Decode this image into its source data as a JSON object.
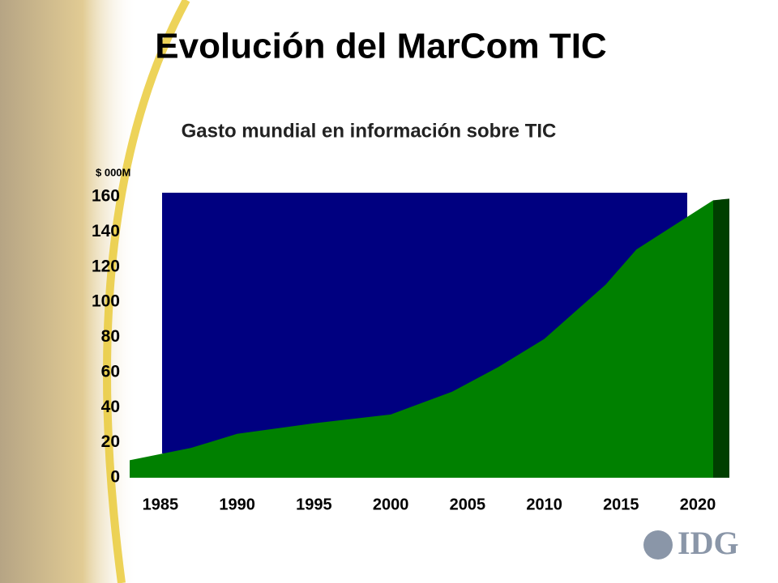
{
  "slide": {
    "title": "Evolución del MarCom TIC",
    "logo": "IDG"
  },
  "chart_data": {
    "type": "area",
    "title": "Gasto mundial en información sobre TIC",
    "y_label": "$ 000M",
    "x": [
      1983,
      1987,
      1990,
      1995,
      2000,
      2004,
      2007,
      2010,
      2014,
      2016,
      2021
    ],
    "values": [
      10,
      17,
      25,
      31,
      36,
      49,
      63,
      79,
      110,
      130,
      158
    ],
    "color": "#008000",
    "wall_color": "#000080",
    "side_color": "#003f00",
    "xlim": [
      1983,
      2021
    ],
    "ylim": [
      0,
      160
    ],
    "xticks": [
      1985,
      1990,
      1995,
      2000,
      2005,
      2010,
      2015,
      2020
    ],
    "yticks": [
      0,
      20,
      40,
      60,
      80,
      100,
      120,
      140,
      160
    ]
  }
}
